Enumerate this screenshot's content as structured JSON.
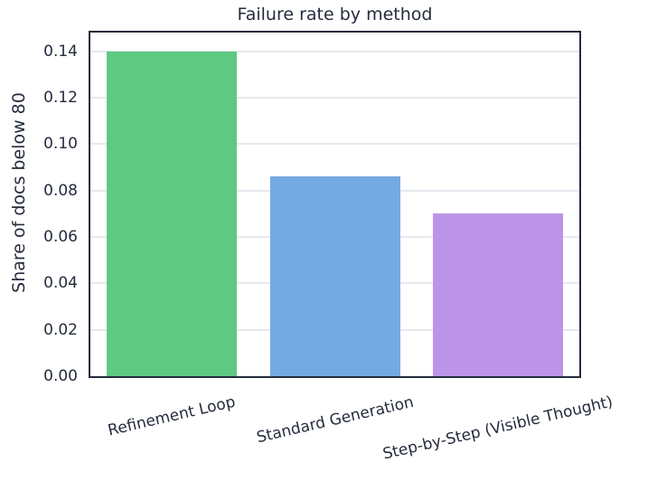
{
  "chart_data": {
    "type": "bar",
    "title": "Failure rate by method",
    "xlabel": "",
    "ylabel": "Share of docs below 80",
    "categories": [
      "Refinement Loop",
      "Standard Generation",
      "Step-by-Step (Visible Thought)"
    ],
    "values": [
      0.14,
      0.086,
      0.07
    ],
    "bar_colors": [
      "#5dc983",
      "#74a9e3",
      "#bd95e8"
    ],
    "ylim": [
      0,
      0.148
    ],
    "yticks": [
      0,
      0.02,
      0.04,
      0.06,
      0.08,
      0.1,
      0.12,
      0.14
    ],
    "ytick_labels": [
      "0.00",
      "0.02",
      "0.04",
      "0.06",
      "0.08",
      "0.10",
      "0.12",
      "0.14"
    ],
    "grid": "horizontal",
    "legend": "none",
    "xtick_rotation_deg": 13,
    "colors": {
      "text": "#252c3d",
      "spine": "#252c3d",
      "grid": "#e7e8ef",
      "plot_background": "#ffffff",
      "figure_background": "#ffffff"
    }
  }
}
